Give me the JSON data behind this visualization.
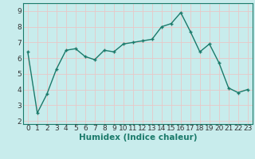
{
  "x": [
    0,
    1,
    2,
    3,
    4,
    5,
    6,
    7,
    8,
    9,
    10,
    11,
    12,
    13,
    14,
    15,
    16,
    17,
    18,
    19,
    20,
    21,
    22,
    23
  ],
  "y": [
    6.4,
    2.5,
    3.7,
    5.3,
    6.5,
    6.6,
    6.1,
    5.9,
    6.5,
    6.4,
    6.9,
    7.0,
    7.1,
    7.2,
    8.0,
    8.2,
    8.9,
    7.7,
    6.4,
    6.9,
    5.7,
    4.1,
    3.8,
    4.0
  ],
  "line_color": "#1a7a6a",
  "marker": "+",
  "marker_size": 3.5,
  "line_width": 1.0,
  "bg_color": "#c8ecec",
  "grid_color": "#e8c8c8",
  "xlabel": "Humidex (Indice chaleur)",
  "xlabel_fontsize": 7.5,
  "xlabel_fontweight": "bold",
  "ylabel_ticks": [
    2,
    3,
    4,
    5,
    6,
    7,
    8,
    9
  ],
  "xlim": [
    -0.5,
    23.5
  ],
  "ylim": [
    1.8,
    9.5
  ],
  "tick_fontsize": 6.5,
  "spine_color": "#1a7a6a"
}
